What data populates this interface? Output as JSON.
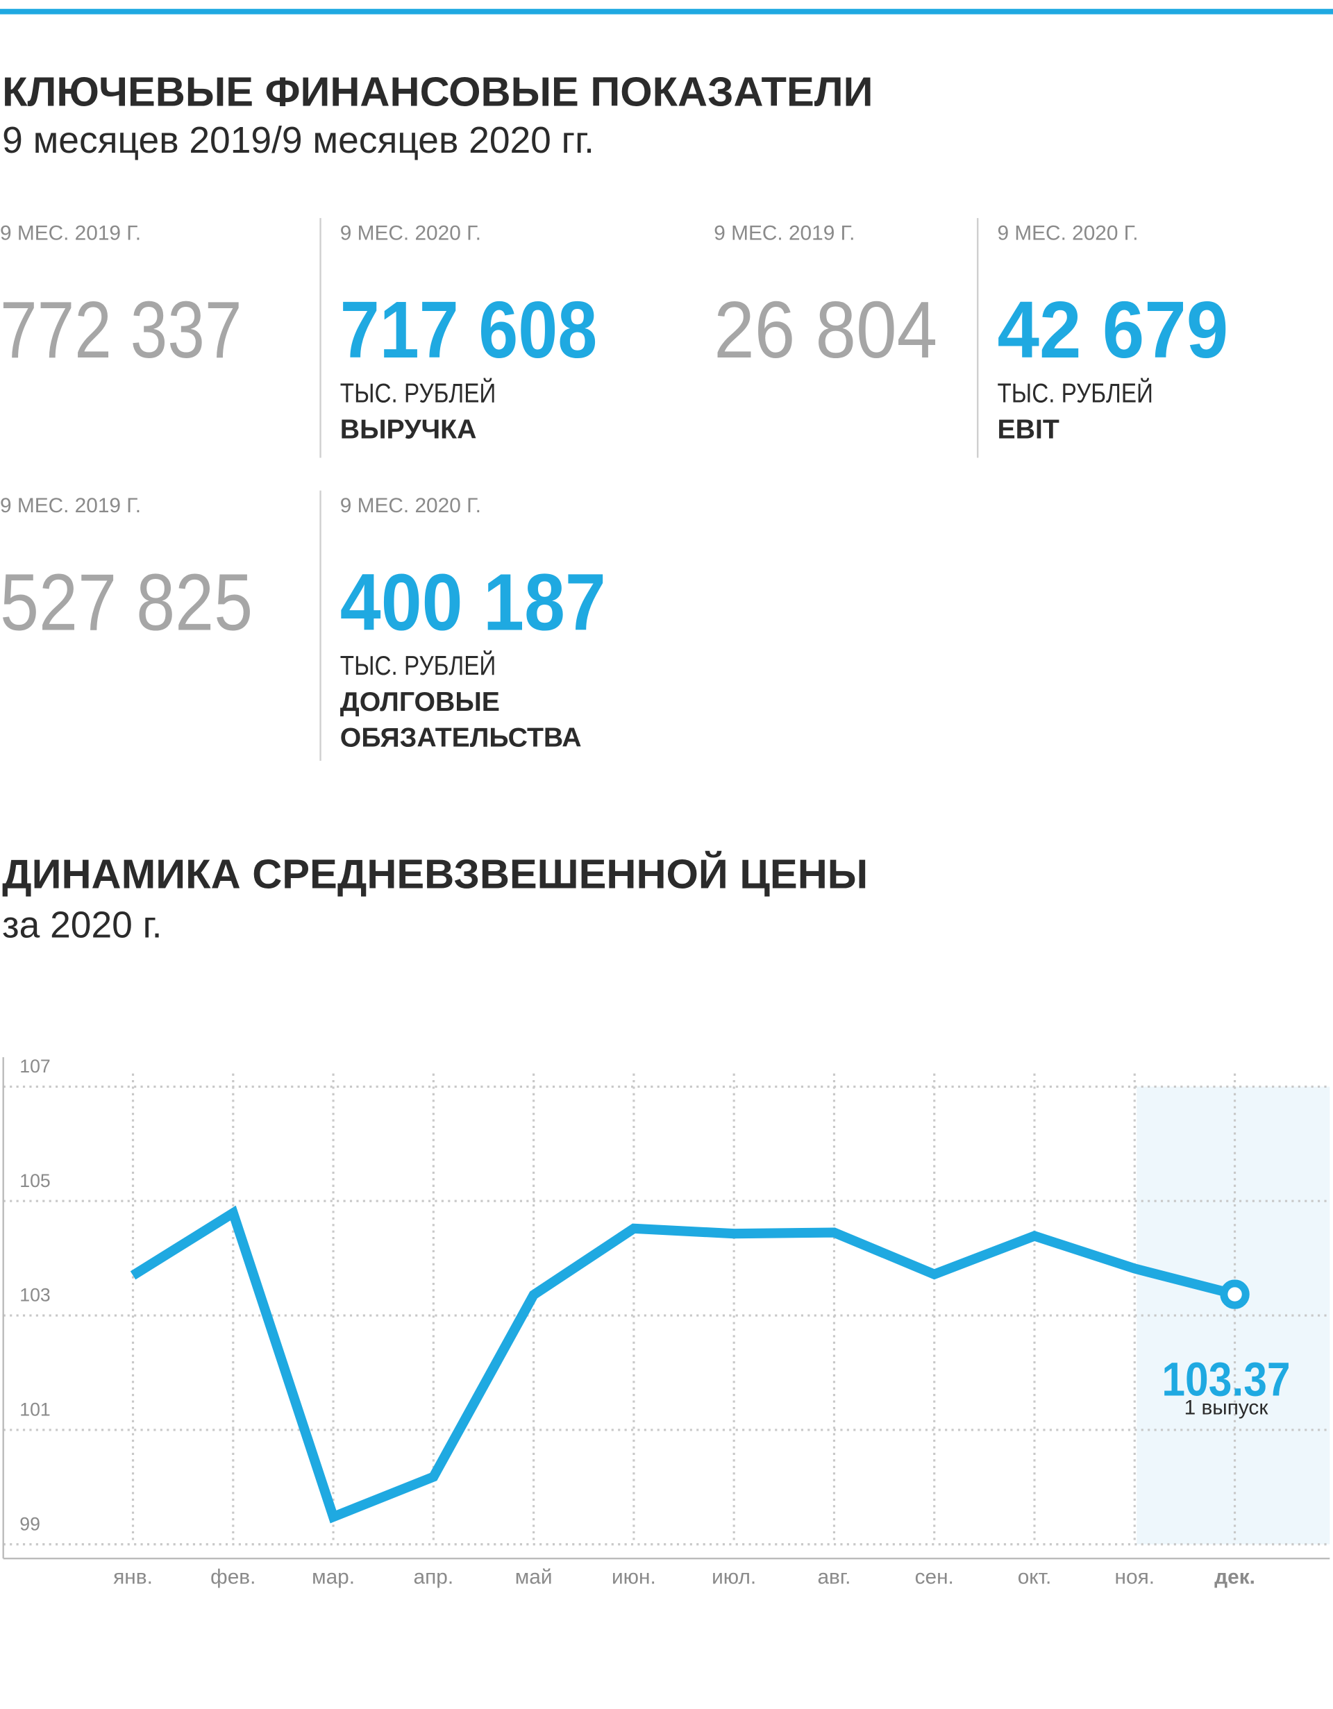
{
  "header": {
    "title": "КЛЮЧЕВЫЕ ФИНАНСОВЫЕ ПОКАЗАТЕЛИ",
    "subtitle": "9 месяцев 2019/9 месяцев 2020 гг."
  },
  "kpis": [
    {
      "prev_label": "9 МЕС. 2019 Г.",
      "prev": "772 337",
      "curr_label": "9 МЕС. 2020 Г.",
      "curr": "717 608",
      "unit": "ТЫС. РУБЛЕЙ",
      "name": [
        "ВЫРУЧКА"
      ]
    },
    {
      "prev_label": "9 МЕС. 2019 Г.",
      "prev": "26 804",
      "curr_label": "9 МЕС. 2020 Г.",
      "curr": "42 679",
      "unit": "ТЫС. РУБЛЕЙ",
      "name": [
        "EBIT"
      ]
    },
    {
      "prev_label": "9 МЕС. 2019 Г.",
      "prev": "527 825",
      "curr_label": "9 МЕС. 2020 Г.",
      "curr": "400 187",
      "unit": "ТЫС. РУБЛЕЙ",
      "name": [
        "ДОЛГОВЫЕ",
        "ОБЯЗАТЕЛЬСТВА"
      ]
    }
  ],
  "chart_data": {
    "type": "line",
    "title": "ДИНАМИКА СРЕДНЕВЗВЕШЕННОЙ ЦЕНЫ",
    "subtitle": "за 2020 г.",
    "categories": [
      "янв.",
      "фев.",
      "мар.",
      "апр.",
      "май",
      "июн.",
      "июл.",
      "авг.",
      "сен.",
      "окт.",
      "ноя.",
      "дек."
    ],
    "values": [
      103.7,
      104.79,
      99.48,
      100.18,
      103.36,
      104.52,
      104.43,
      104.45,
      103.72,
      104.39,
      103.82,
      103.37
    ],
    "color": "#1fa9e1",
    "ylim": [
      99,
      107
    ],
    "yticks": [
      99,
      101,
      103,
      105,
      107
    ],
    "grid": true,
    "annotation": "1 выпуск"
  }
}
